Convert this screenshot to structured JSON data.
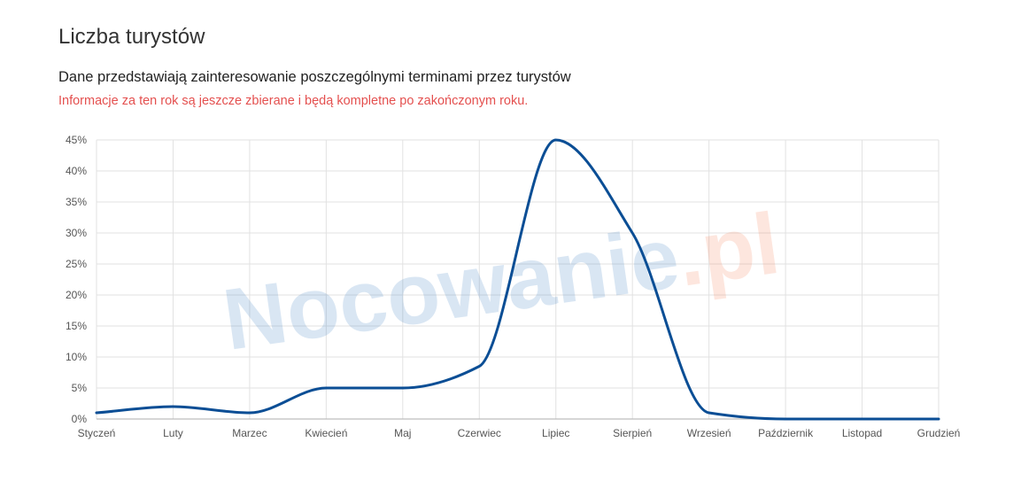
{
  "header": {
    "title": "Liczba turystów",
    "subtitle": "Dane przedstawiają zainteresowanie poszczególnymi terminami przez turystów",
    "note": "Informacje za ten rok są jeszcze zbierane i będą kompletne po zakończonym roku."
  },
  "watermark": {
    "main": "Nocowanie",
    "suffix": ".pl",
    "main_color": "#1f6cb8",
    "suffix_color": "#f26b3a"
  },
  "colors": {
    "line": "#0b4e95",
    "grid": "#e2e2e2",
    "axis": "#bdbdbd",
    "note": "#e4504f"
  },
  "chart_data": {
    "type": "line",
    "categories": [
      "Styczeń",
      "Luty",
      "Marzec",
      "Kwiecień",
      "Maj",
      "Czerwiec",
      "Lipiec",
      "Sierpień",
      "Wrzesień",
      "Październik",
      "Listopad",
      "Grudzień"
    ],
    "series": [
      {
        "values": [
          1,
          2,
          1,
          5,
          5,
          8.5,
          45,
          30,
          1,
          0,
          0,
          0
        ]
      }
    ],
    "yticks": [
      "0%",
      "5%",
      "10%",
      "15%",
      "20%",
      "25%",
      "30%",
      "35%",
      "40%",
      "45%"
    ],
    "ylim": [
      0,
      45
    ],
    "grid": true,
    "legend": "none"
  }
}
